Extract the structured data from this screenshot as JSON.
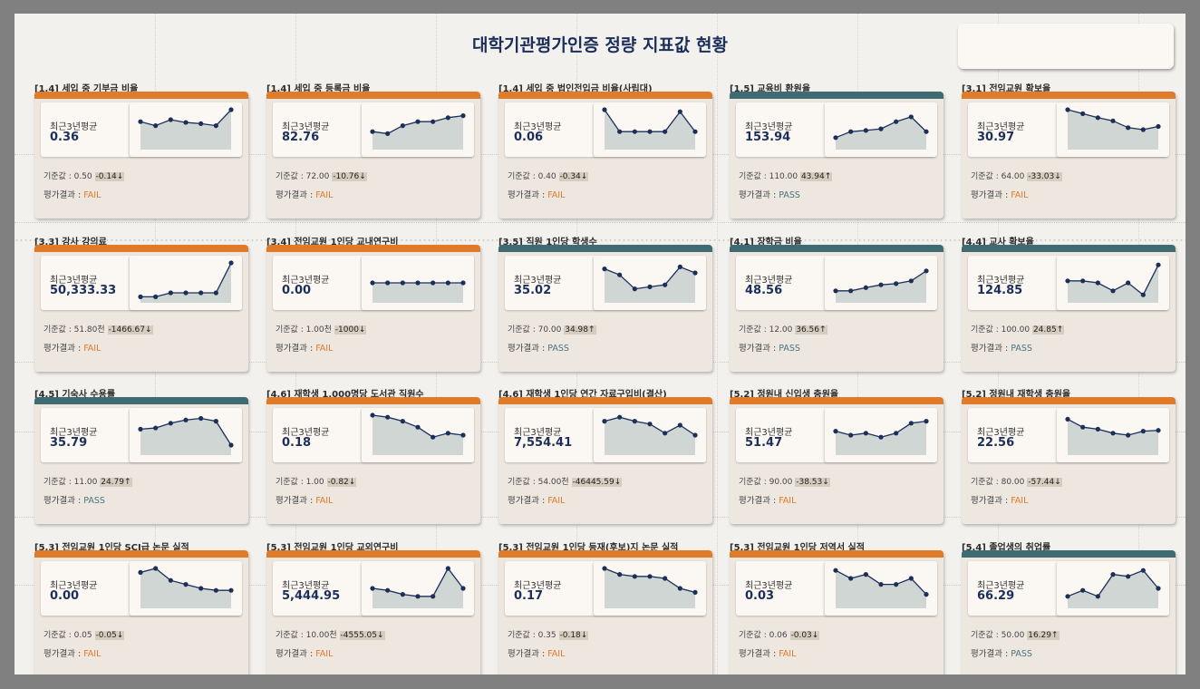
{
  "page": {
    "title": "대학기관평가인증 정량 지표값 현황"
  },
  "labels": {
    "avg": "최근3년평균",
    "base_prefix": "기준값 : ",
    "result_prefix": "평가결과 : "
  },
  "colors": {
    "fail": "#e07b2a",
    "pass": "#3f6c72",
    "line": "#1c2e5a",
    "area": "#cfd6d3"
  },
  "cards": [
    {
      "title": "[1.4] 세입 중 기부금 비율",
      "avg": "0.36",
      "base": "0.50",
      "diff": "-0.14",
      "arrow": "↓",
      "result": "FAIL",
      "spark": [
        0.7,
        0.6,
        0.75,
        0.68,
        0.65,
        0.6,
        1.0
      ]
    },
    {
      "title": "[1.4] 세입 중 등록금 비율",
      "avg": "82.76",
      "base": "72.00",
      "diff": "-10.76",
      "arrow": "↓",
      "result": "FAIL",
      "spark": [
        0.45,
        0.4,
        0.6,
        0.7,
        0.7,
        0.8,
        0.85
      ]
    },
    {
      "title": "[1.4] 세입 중 법인전입금 비율(사립대)",
      "avg": "0.06",
      "base": "0.40",
      "diff": "-0.34",
      "arrow": "↓",
      "result": "FAIL",
      "spark": [
        1.0,
        0.45,
        0.45,
        0.45,
        0.45,
        0.95,
        0.45
      ]
    },
    {
      "title": "[1.5] 교육비 환원율",
      "avg": "153.94",
      "base": "110.00",
      "diff": "43.94",
      "arrow": "↑",
      "result": "PASS",
      "spark": [
        0.3,
        0.45,
        0.48,
        0.52,
        0.7,
        0.82,
        0.45
      ]
    },
    {
      "title": "[3.1] 전임교원 확보율",
      "avg": "30.97",
      "base": "64.00",
      "diff": "-33.03",
      "arrow": "↓",
      "result": "FAIL",
      "spark": [
        1.0,
        0.9,
        0.8,
        0.72,
        0.55,
        0.5,
        0.58
      ]
    },
    {
      "title": "[3.3] 강사 강의료",
      "avg": "50,333.33",
      "base": "51.80천",
      "diff": "-1466.67",
      "arrow": "↓",
      "result": "FAIL",
      "spark": [
        0.15,
        0.15,
        0.25,
        0.25,
        0.25,
        0.25,
        1.0
      ]
    },
    {
      "title": "[3.4] 전임교원 1인당 교내연구비",
      "avg": "0.00",
      "base": "1.00천",
      "diff": "-1000",
      "arrow": "↓",
      "result": "FAIL",
      "spark": [
        0.5,
        0.5,
        0.5,
        0.5,
        0.5,
        0.5,
        0.5
      ]
    },
    {
      "title": "[3.5] 직원 1인당 학생수",
      "avg": "35.02",
      "base": "70.00",
      "diff": "34.98",
      "arrow": "↑",
      "result": "PASS",
      "spark": [
        0.85,
        0.7,
        0.35,
        0.4,
        0.45,
        0.9,
        0.75
      ]
    },
    {
      "title": "[4.1] 장학금 비율",
      "avg": "48.56",
      "base": "12.00",
      "diff": "36.56",
      "arrow": "↑",
      "result": "PASS",
      "spark": [
        0.3,
        0.3,
        0.38,
        0.45,
        0.48,
        0.55,
        0.8
      ]
    },
    {
      "title": "[4.4] 교사 확보율",
      "avg": "124.85",
      "base": "100.00",
      "diff": "24.85",
      "arrow": "↑",
      "result": "PASS",
      "spark": [
        0.55,
        0.55,
        0.5,
        0.3,
        0.5,
        0.2,
        0.95
      ]
    },
    {
      "title": "[4.5] 기숙사 수용률",
      "avg": "35.79",
      "base": "11.00",
      "diff": "24.79",
      "arrow": "↑",
      "result": "PASS",
      "spark": [
        0.65,
        0.68,
        0.8,
        0.88,
        0.92,
        0.85,
        0.25
      ]
    },
    {
      "title": "[4.6] 재학생 1,000명당 도서관 직원수",
      "avg": "0.18",
      "base": "1.00",
      "diff": "-0.82",
      "arrow": "↓",
      "result": "FAIL",
      "spark": [
        1.0,
        0.95,
        0.85,
        0.7,
        0.45,
        0.55,
        0.5
      ]
    },
    {
      "title": "[4.6] 재학생 1인당 연간 자료구입비(결산)",
      "avg": "7,554.41",
      "base": "54.00천",
      "diff": "-46445.59",
      "arrow": "↓",
      "result": "FAIL",
      "spark": [
        0.85,
        0.95,
        0.85,
        0.78,
        0.55,
        0.75,
        0.5
      ]
    },
    {
      "title": "[5.2] 정원내 신입생 충원율",
      "avg": "51.47",
      "base": "90.00",
      "diff": "-38.53",
      "arrow": "↓",
      "result": "FAIL",
      "spark": [
        0.6,
        0.5,
        0.55,
        0.45,
        0.55,
        0.8,
        0.85
      ]
    },
    {
      "title": "[5.2] 정원내 재학생 충원율",
      "avg": "22.56",
      "base": "80.00",
      "diff": "-57.44",
      "arrow": "↓",
      "result": "FAIL",
      "spark": [
        0.9,
        0.7,
        0.65,
        0.55,
        0.5,
        0.6,
        0.62
      ]
    },
    {
      "title": "[5.3] 전임교원 1인당 SCI급 논문 실적",
      "avg": "0.00",
      "base": "0.05",
      "diff": "-0.05",
      "arrow": "↓",
      "result": "FAIL",
      "spark": [
        0.9,
        1.0,
        0.7,
        0.6,
        0.5,
        0.45,
        0.45
      ]
    },
    {
      "title": "[5.3] 전임교원 1인당 교외연구비",
      "avg": "5,444.95",
      "base": "10.00천",
      "diff": "-4555.05",
      "arrow": "↓",
      "result": "FAIL",
      "spark": [
        0.5,
        0.45,
        0.35,
        0.3,
        0.3,
        1.0,
        0.5
      ]
    },
    {
      "title": "[5.3] 전임교원 1인당 등재(후보)지 논문 실적",
      "avg": "0.17",
      "base": "0.35",
      "diff": "-0.18",
      "arrow": "↓",
      "result": "FAIL",
      "spark": [
        1.0,
        0.85,
        0.8,
        0.8,
        0.75,
        0.5,
        0.4
      ]
    },
    {
      "title": "[5.3] 전임교원 1인당 저역서 실적",
      "avg": "0.03",
      "base": "0.06",
      "diff": "-0.03",
      "arrow": "↓",
      "result": "FAIL",
      "spark": [
        0.95,
        0.75,
        0.85,
        0.6,
        0.6,
        0.75,
        0.35
      ]
    },
    {
      "title": "[5.4] 졸업생의 취업률",
      "avg": "66.29",
      "base": "50.00",
      "diff": "16.29",
      "arrow": "↑",
      "result": "PASS",
      "spark": [
        0.3,
        0.45,
        0.3,
        0.85,
        0.8,
        0.95,
        0.5
      ]
    }
  ]
}
